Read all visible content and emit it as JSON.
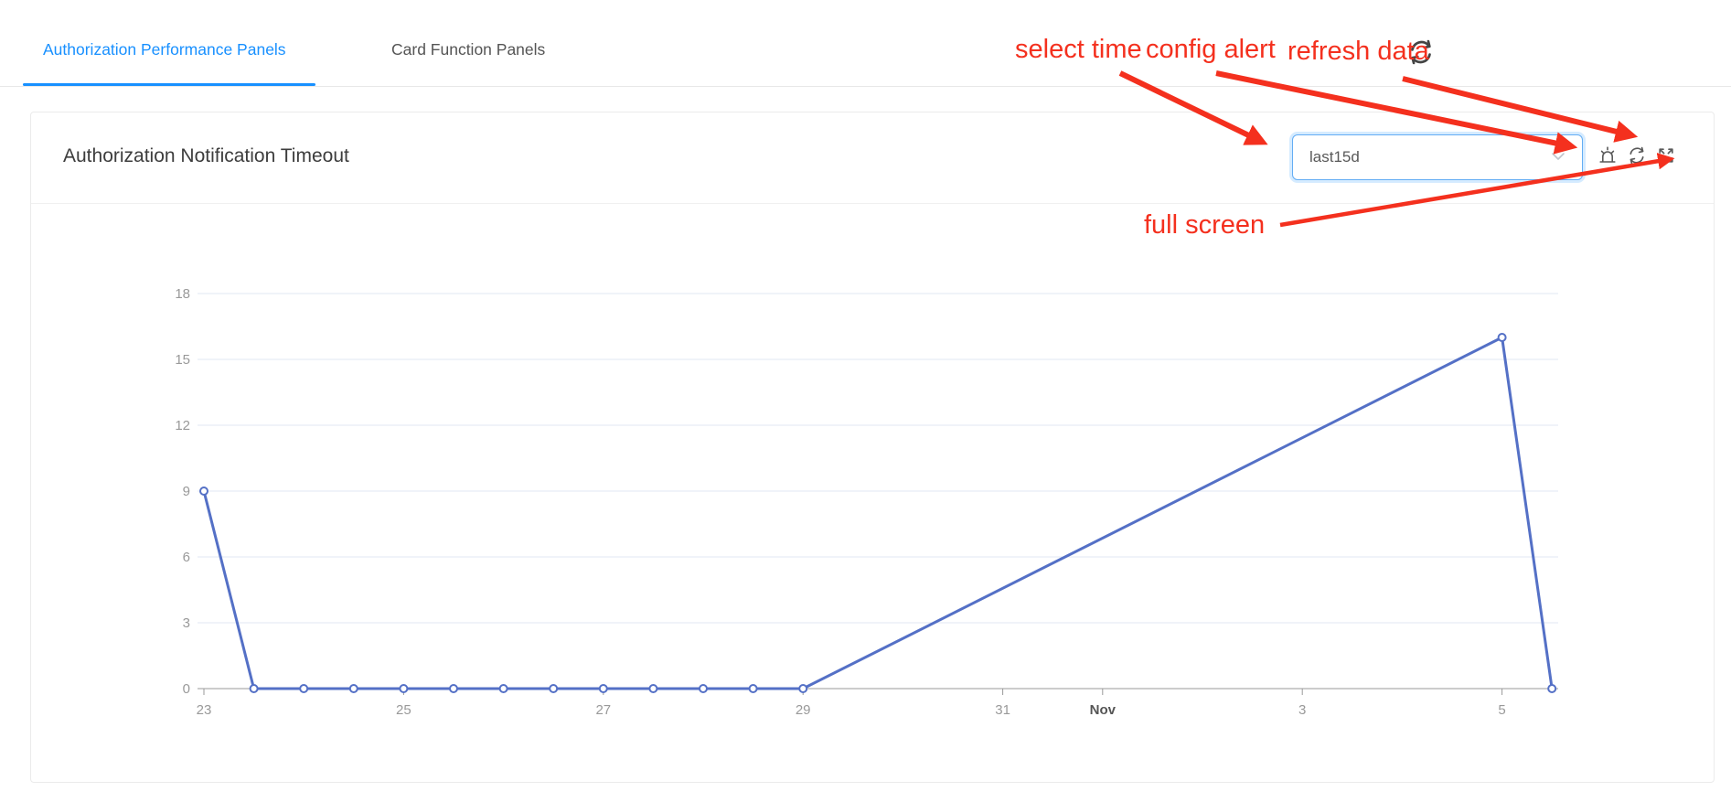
{
  "tabs": [
    {
      "label": "Authorization Performance Panels",
      "active": true
    },
    {
      "label": "Card Function Panels",
      "active": false
    }
  ],
  "annotations": {
    "color": "#f4301e",
    "select_time": "select time",
    "config_alert": "config alert",
    "refresh_data": "refresh data",
    "full_screen": "full screen"
  },
  "panel": {
    "title": "Authorization Notification Timeout",
    "time_select": {
      "value": "last15d"
    }
  },
  "icons": {
    "page_refresh": "circular-arrows",
    "config_alert": "alarm-bell",
    "refresh_data": "circular-arrows",
    "full_screen": "expand-arrows",
    "select_chevron": "chevron-down"
  },
  "chart_data": {
    "type": "line",
    "title": "Authorization Notification Timeout",
    "x_axis": {
      "type": "time",
      "tick_labels": [
        "23",
        "25",
        "27",
        "29",
        "31",
        "Nov",
        "3",
        "5"
      ],
      "tick_day_offsets": [
        0,
        2,
        4,
        6,
        8,
        9,
        11,
        13
      ],
      "start": "Oct 23",
      "end": "Nov 5 12:00"
    },
    "y_axis": {
      "ticks": [
        0,
        3,
        6,
        9,
        12,
        15,
        18
      ],
      "min": 0,
      "max": 18
    },
    "series": [
      {
        "name": "Authorization Notification Timeout",
        "note": "no data between Oct 29 and Nov 5; line connects the two points directly",
        "points": [
          {
            "t": "Oct 23 00:00",
            "day_offset": 0,
            "v": 9
          },
          {
            "t": "Oct 23 12:00",
            "day_offset": 0.5,
            "v": 0
          },
          {
            "t": "Oct 24 00:00",
            "day_offset": 1,
            "v": 0
          },
          {
            "t": "Oct 24 12:00",
            "day_offset": 1.5,
            "v": 0
          },
          {
            "t": "Oct 25 00:00",
            "day_offset": 2,
            "v": 0
          },
          {
            "t": "Oct 25 12:00",
            "day_offset": 2.5,
            "v": 0
          },
          {
            "t": "Oct 26 00:00",
            "day_offset": 3,
            "v": 0
          },
          {
            "t": "Oct 26 12:00",
            "day_offset": 3.5,
            "v": 0
          },
          {
            "t": "Oct 27 00:00",
            "day_offset": 4,
            "v": 0
          },
          {
            "t": "Oct 27 12:00",
            "day_offset": 4.5,
            "v": 0
          },
          {
            "t": "Oct 28 00:00",
            "day_offset": 5,
            "v": 0
          },
          {
            "t": "Oct 28 12:00",
            "day_offset": 5.5,
            "v": 0
          },
          {
            "t": "Oct 29 00:00",
            "day_offset": 6,
            "v": 0
          },
          {
            "t": "Nov 5 00:00",
            "day_offset": 13,
            "v": 16
          },
          {
            "t": "Nov 5 12:00",
            "day_offset": 13.5,
            "v": 0
          }
        ]
      }
    ],
    "style": {
      "line_color": "#5470c6",
      "marker": "hollow-circle",
      "grid_color": "#e2e7f3",
      "axis_color": "#999999",
      "tick_label_color": "#999999",
      "month_label_color": "#555555",
      "grid": true,
      "legend": false
    }
  }
}
